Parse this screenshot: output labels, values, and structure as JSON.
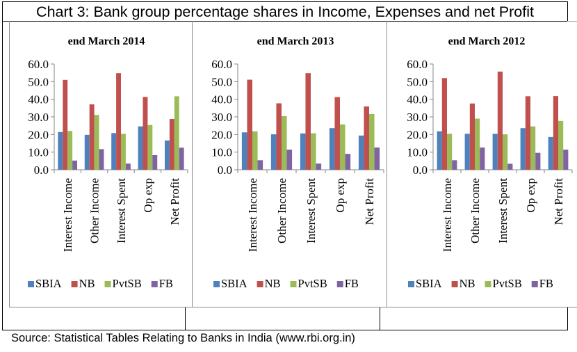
{
  "title": "Chart 3: Bank group percentage shares in Income, Expenses and net Profit",
  "source": "Source: Statistical Tables Relating to Banks in India (www.rbi.org.in)",
  "colors": {
    "SBIA": "#4F81BD",
    "NB": "#C0504D",
    "PvtSB": "#9BBB59",
    "FB": "#8064A2"
  },
  "chart_data": [
    {
      "type": "bar",
      "title": "end March 2014",
      "xlabel": "",
      "ylabel": "",
      "ylim": [
        0,
        60
      ],
      "yticks": [
        "0.0",
        "10.0",
        "20.0",
        "30.0",
        "40.0",
        "50.0",
        "60.0"
      ],
      "grid": false,
      "legend": "bottom",
      "categories": [
        "Interest Income",
        "Other Income",
        "Interest Spent",
        "Op exp",
        "Net Profit"
      ],
      "series": [
        {
          "name": "SBIA",
          "values": [
            21.4,
            19.8,
            20.8,
            24.6,
            16.6
          ]
        },
        {
          "name": "NB",
          "values": [
            51.0,
            37.1,
            54.8,
            41.3,
            28.8
          ]
        },
        {
          "name": "PvtSB",
          "values": [
            22.0,
            31.1,
            20.4,
            25.4,
            41.7
          ]
        },
        {
          "name": "FB",
          "values": [
            5.2,
            11.7,
            3.5,
            8.3,
            12.5
          ]
        }
      ]
    },
    {
      "type": "bar",
      "title": "end March 2013",
      "xlabel": "",
      "ylabel": "",
      "ylim": [
        0,
        60
      ],
      "yticks": [
        "0.0",
        "10.0",
        "20.0",
        "30.0",
        "40.0",
        "50.0",
        "60.0"
      ],
      "grid": false,
      "legend": "bottom",
      "categories": [
        "Interest Income",
        "Other Income",
        "Interest Spent",
        "Op exp",
        "Net Profit"
      ],
      "series": [
        {
          "name": "SBIA",
          "values": [
            21.2,
            20.1,
            20.6,
            23.6,
            19.4
          ]
        },
        {
          "name": "NB",
          "values": [
            51.1,
            37.7,
            54.8,
            41.2,
            35.9
          ]
        },
        {
          "name": "PvtSB",
          "values": [
            21.8,
            30.4,
            20.7,
            25.7,
            31.6
          ]
        },
        {
          "name": "FB",
          "values": [
            5.4,
            11.4,
            3.5,
            9.0,
            12.6
          ]
        }
      ]
    },
    {
      "type": "bar",
      "title": "end March 2012",
      "xlabel": "",
      "ylabel": "",
      "ylim": [
        0,
        60
      ],
      "yticks": [
        "0.0",
        "10.0",
        "20.0",
        "30.0",
        "40.0",
        "50.0",
        "60.0"
      ],
      "grid": false,
      "legend": "bottom",
      "categories": [
        "Interest Income",
        "Other Income",
        "Interest Spent",
        "Op exp",
        "Net Profit"
      ],
      "series": [
        {
          "name": "SBIA",
          "values": [
            21.8,
            20.4,
            20.4,
            23.6,
            18.6
          ]
        },
        {
          "name": "NB",
          "values": [
            52.0,
            37.6,
            55.7,
            41.7,
            41.8
          ]
        },
        {
          "name": "PvtSB",
          "values": [
            20.4,
            29.0,
            20.1,
            24.6,
            27.7
          ]
        },
        {
          "name": "FB",
          "values": [
            5.4,
            12.6,
            3.4,
            9.6,
            11.4
          ]
        }
      ]
    }
  ]
}
